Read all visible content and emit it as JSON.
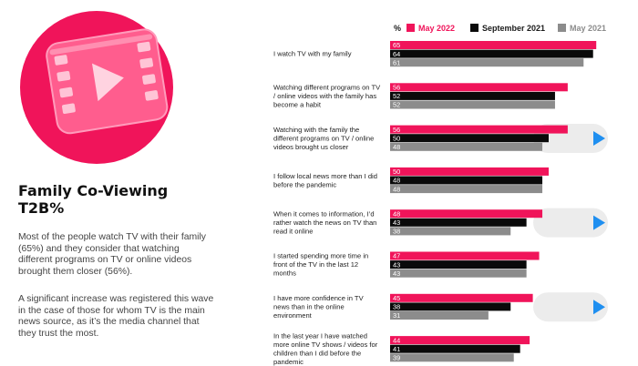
{
  "heading": {
    "line1": "Family Co-Viewing",
    "line2": "T2B%"
  },
  "paragraphs": [
    "Most of the people watch TV with their family (65%) and they consider that watching different programs on TV or online videos brought them closer (56%).",
    "A significant increase was registered this wave in the case of those for whom TV is the main news source, as it’s the media channel that they trust the most."
  ],
  "colors": {
    "pink": "#f0145a",
    "black": "#0a0a0a",
    "gray": "#8c8c8c",
    "play": "#1f8ff0",
    "play_bg": "#ececec"
  },
  "legend": {
    "percent_label": "%",
    "items": [
      {
        "label": "May 2022",
        "color": "#f0145a"
      },
      {
        "label": "September 2021",
        "color": "#0a0a0a"
      },
      {
        "label": "May 2021",
        "color": "#8c8c8c"
      }
    ]
  },
  "chart_data": {
    "type": "bar",
    "orientation": "horizontal",
    "categories": [
      "I watch TV with my family",
      "Watching different programs on TV / online videos with the family has become a habit",
      "Watching with the family the different programs on TV / online videos brought us closer",
      "I follow local news more than I did before the pandemic",
      "When it comes to information, I’d rather watch the news on TV than read it online",
      "I started spending more time in front of the TV in the last 12 months",
      "I have more confidence in TV news than in the online environment",
      "In the last year I have watched more online TV shows / videos for children than I did before the pandemic"
    ],
    "series": [
      {
        "name": "May 2022",
        "values": [
          65,
          56,
          56,
          50,
          48,
          47,
          45,
          44
        ]
      },
      {
        "name": "September 2021",
        "values": [
          64,
          52,
          50,
          48,
          43,
          43,
          38,
          41
        ]
      },
      {
        "name": "May 2021",
        "values": [
          61,
          52,
          48,
          48,
          38,
          43,
          31,
          39
        ]
      }
    ],
    "play_markers": [
      2,
      4,
      6
    ],
    "xlim": [
      0,
      65
    ],
    "grid": false,
    "legend_position": "top"
  }
}
